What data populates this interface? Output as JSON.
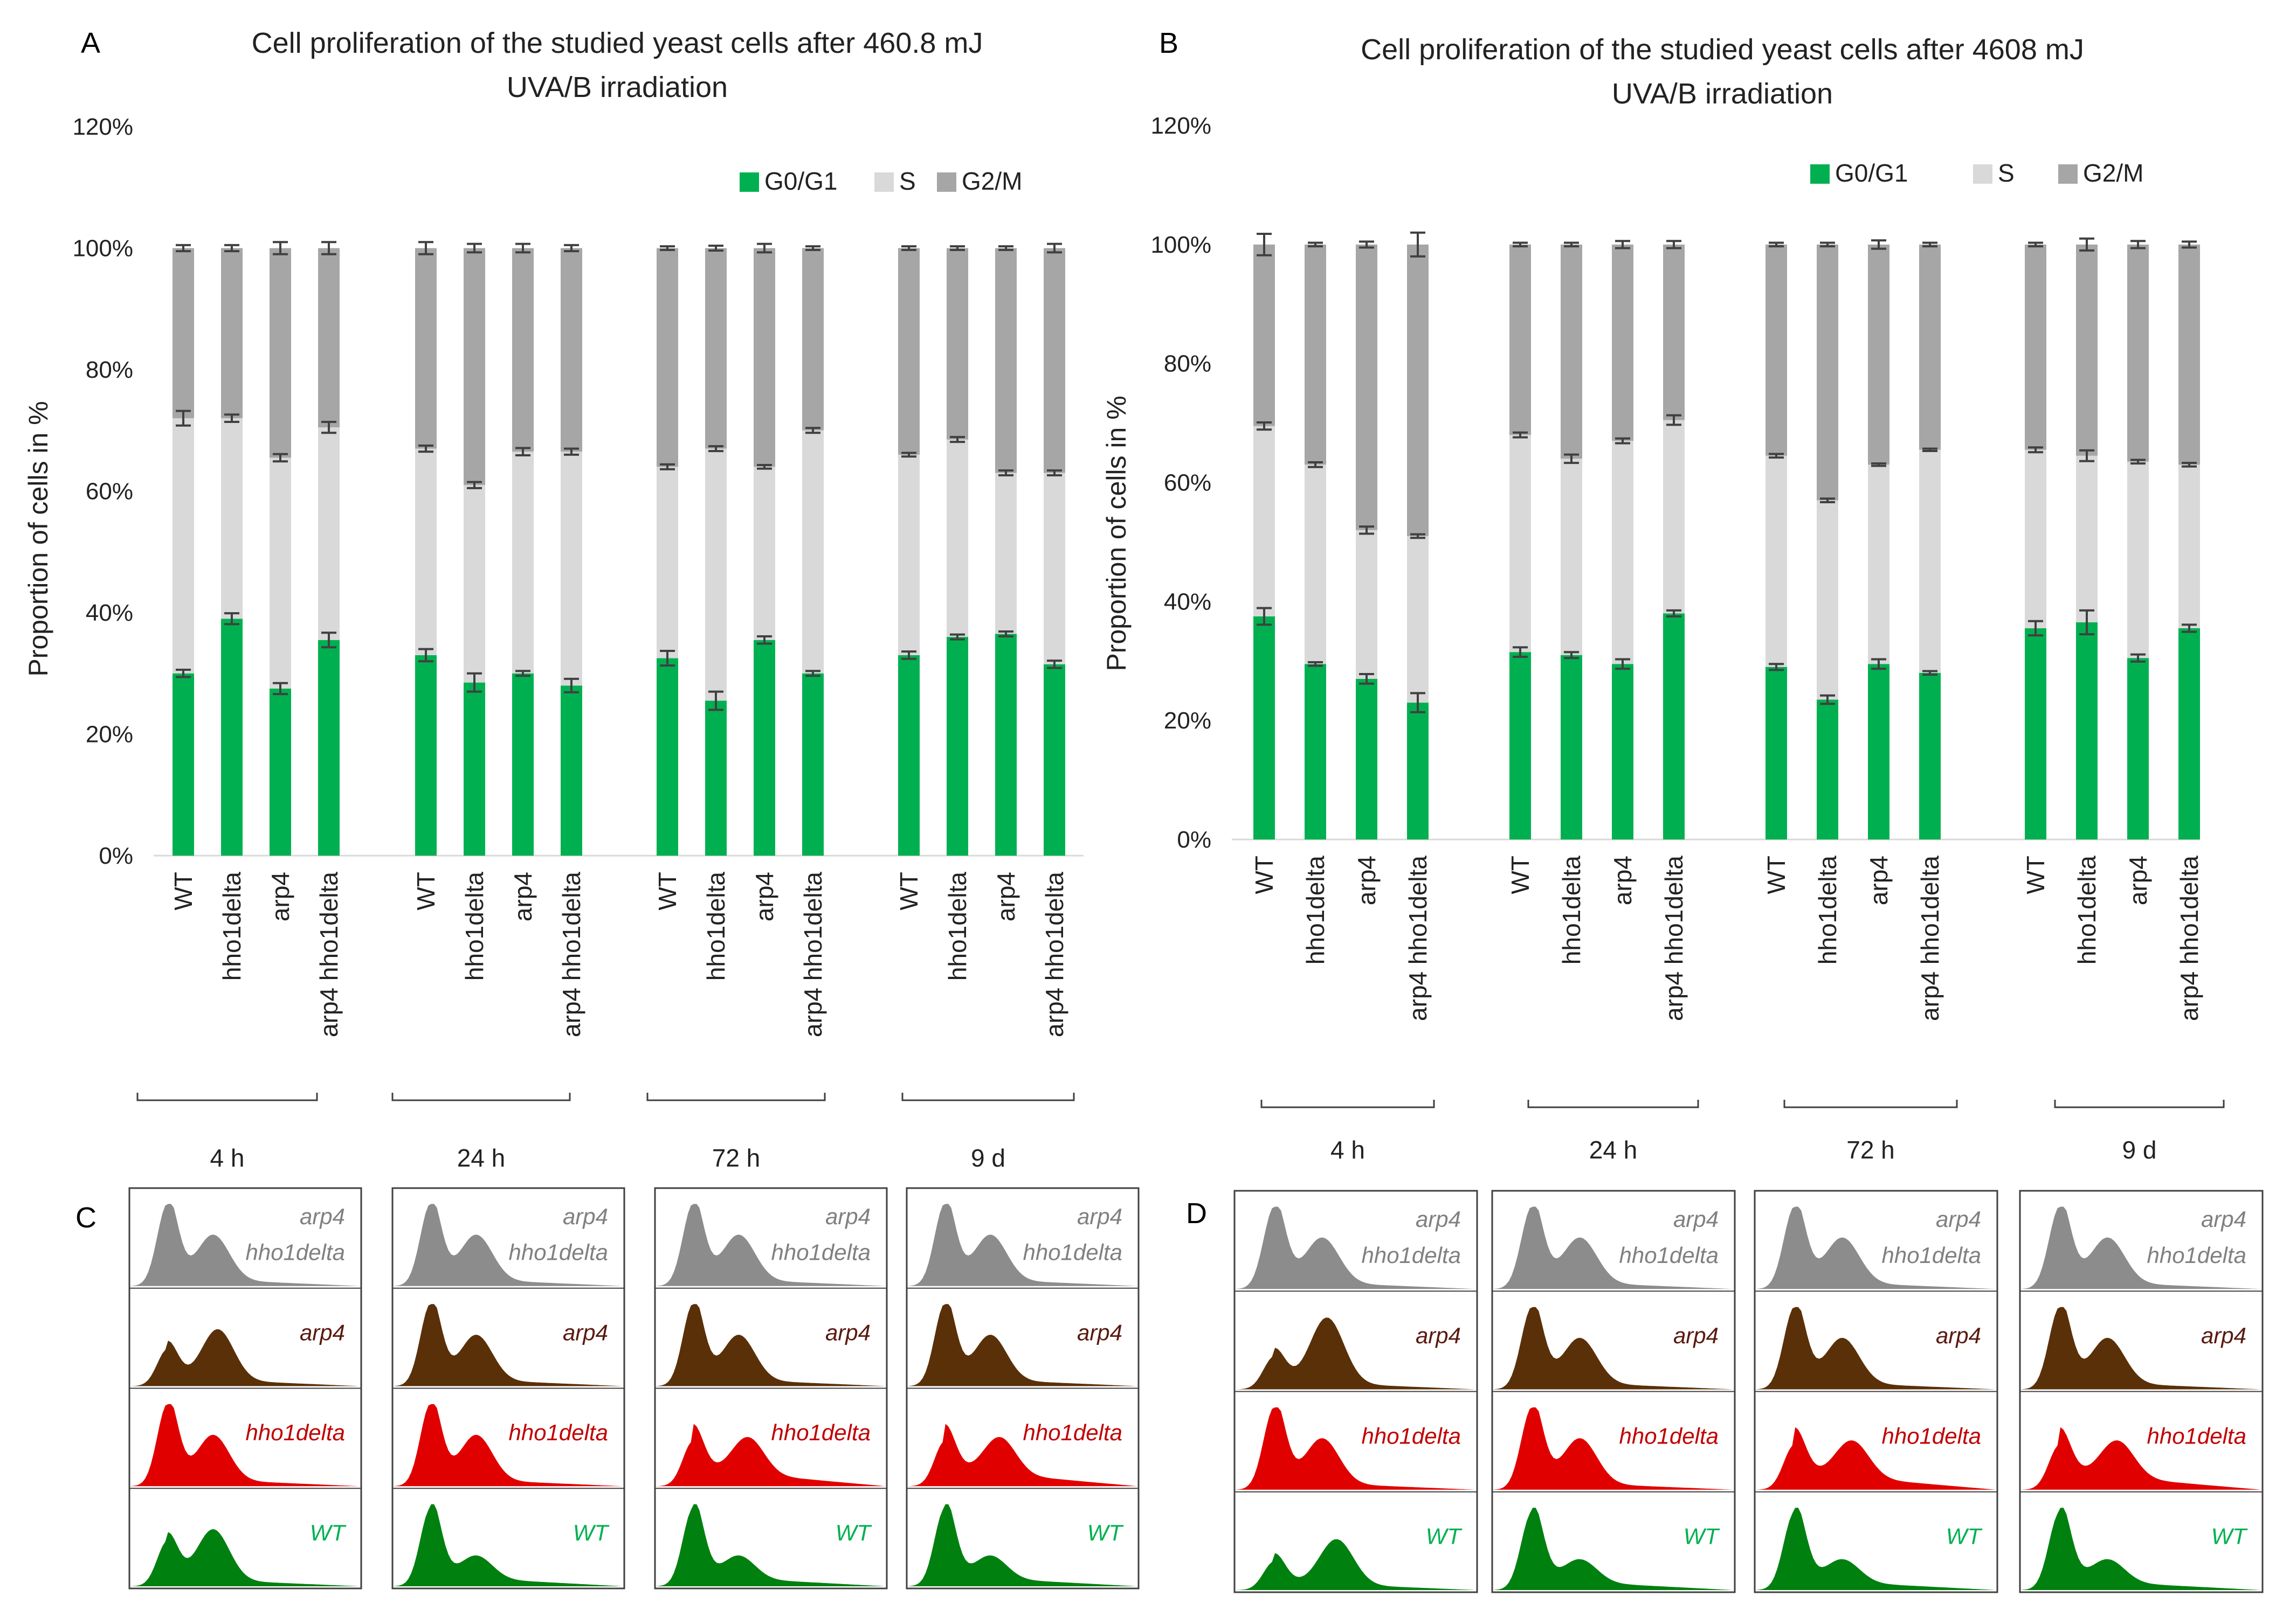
{
  "colors": {
    "g0g1": "#00b050",
    "s": "#d9d9d9",
    "g2m": "#a6a6a6",
    "error": "#404040",
    "hist_wt": "#00800f",
    "hist_hho1": "#e00000",
    "hist_arp4": "#5a3008",
    "hist_double": "#8c8c8c",
    "wt_label": "#00b050",
    "hho1_label": "#c00000",
    "arp4_label": "#5a1a10",
    "double_label": "#808080"
  },
  "chart_data": [
    {
      "panel": "A",
      "type": "bar",
      "stacked": true,
      "title_line1": "Cell proliferation of the studied yeast cells after 460.8 mJ",
      "title_line2": "UVA/B irradiation",
      "ylabel": "Proportion of cells in %",
      "ylim": [
        0,
        1.2
      ],
      "yticks": [
        "0%",
        "20%",
        "40%",
        "60%",
        "80%",
        "100%",
        "120%"
      ],
      "legend": [
        "G0/G1",
        "S",
        "G2/M"
      ],
      "groups": [
        {
          "label": "4 h",
          "categories": [
            "WT",
            "hho1delta",
            "arp4",
            "arp4 hho1delta"
          ],
          "g0g1": [
            30,
            39,
            27.5,
            35.5
          ],
          "s": [
            42,
            33,
            38,
            35
          ],
          "g2m": [
            28,
            28,
            34.5,
            29.5
          ],
          "err_g0g1": [
            0.6,
            0.9,
            0.9,
            1.2
          ],
          "err_s": [
            1.2,
            0.6,
            0.6,
            0.9
          ],
          "err_total": [
            0.5,
            0.5,
            1.0,
            1.0
          ]
        },
        {
          "label": "24 h",
          "categories": [
            "WT",
            "hho1delta",
            "arp4",
            "arp4 hho1delta"
          ],
          "g0g1": [
            33,
            28.5,
            30,
            28
          ],
          "s": [
            34,
            32.5,
            36.5,
            38.5
          ],
          "g2m": [
            33,
            39,
            33.5,
            33.5
          ],
          "err_g0g1": [
            1.0,
            1.5,
            0.4,
            1.1
          ],
          "err_s": [
            0.5,
            0.5,
            0.6,
            0.5
          ],
          "err_total": [
            1.0,
            0.7,
            0.7,
            0.5
          ]
        },
        {
          "label": "72 h",
          "categories": [
            "WT",
            "hho1delta",
            "arp4",
            "arp4 hho1delta"
          ],
          "g0g1": [
            32.5,
            25.5,
            35.5,
            30
          ],
          "s": [
            31.5,
            41.5,
            28.5,
            40
          ],
          "g2m": [
            36,
            33,
            36,
            30
          ],
          "err_g0g1": [
            1.2,
            1.5,
            0.6,
            0.4
          ],
          "err_s": [
            0.4,
            0.4,
            0.3,
            0.4
          ],
          "err_total": [
            0.3,
            0.4,
            0.7,
            0.3
          ]
        },
        {
          "label": "9 d",
          "categories": [
            "WT",
            "hho1delta",
            "arp4",
            "arp4 hho1delta"
          ],
          "g0g1": [
            33,
            36,
            36.5,
            31.5
          ],
          "s": [
            33,
            32.5,
            26.5,
            31.5
          ],
          "g2m": [
            34,
            31.5,
            37,
            37
          ],
          "err_g0g1": [
            0.6,
            0.4,
            0.4,
            0.6
          ],
          "err_s": [
            0.3,
            0.4,
            0.4,
            0.4
          ],
          "err_total": [
            0.3,
            0.3,
            0.3,
            0.7
          ]
        }
      ]
    },
    {
      "panel": "B",
      "type": "bar",
      "stacked": true,
      "title_line1": "Cell proliferation of the studied yeast cells after 4608 mJ",
      "title_line2": "UVA/B irradiation",
      "ylabel": "Proportion of cells in %",
      "ylim": [
        0,
        1.2
      ],
      "yticks": [
        "0%",
        "20%",
        "40%",
        "60%",
        "80%",
        "100%",
        "120%"
      ],
      "legend": [
        "G0/G1",
        "S",
        "G2/M"
      ],
      "groups": [
        {
          "label": "4 h",
          "categories": [
            "WT",
            "hho1delta",
            "arp4",
            "arp4 hho1delta"
          ],
          "g0g1": [
            37.5,
            29.5,
            27,
            23
          ],
          "s": [
            32,
            33.5,
            25,
            28
          ],
          "g2m": [
            30.5,
            37,
            48,
            49
          ],
          "err_g0g1": [
            1.4,
            0.3,
            0.8,
            1.6
          ],
          "err_s": [
            0.6,
            0.4,
            0.6,
            0.3
          ],
          "err_total": [
            1.8,
            0.3,
            0.5,
            2.0
          ]
        },
        {
          "label": "24 h",
          "categories": [
            "WT",
            "hho1delta",
            "arp4",
            "arp4 hho1delta"
          ],
          "g0g1": [
            31.5,
            31,
            29.5,
            38
          ],
          "s": [
            36.5,
            33,
            37.5,
            32.5
          ],
          "g2m": [
            32,
            36,
            33,
            29.5
          ],
          "err_g0g1": [
            0.8,
            0.5,
            0.8,
            0.5
          ],
          "err_s": [
            0.4,
            0.7,
            0.4,
            0.8
          ],
          "err_total": [
            0.3,
            0.3,
            0.6,
            0.6
          ]
        },
        {
          "label": "72 h",
          "categories": [
            "WT",
            "hho1delta",
            "arp4",
            "arp4 hho1delta"
          ],
          "g0g1": [
            29,
            23.5,
            29.5,
            28
          ],
          "s": [
            35.5,
            33.5,
            33.5,
            37.5
          ],
          "g2m": [
            35.5,
            43,
            37,
            34.5
          ],
          "err_g0g1": [
            0.5,
            0.7,
            0.8,
            0.3
          ],
          "err_s": [
            0.3,
            0.3,
            0.2,
            0.2
          ],
          "err_total": [
            0.3,
            0.3,
            0.7,
            0.3
          ]
        },
        {
          "label": "9 d",
          "categories": [
            "WT",
            "hho1delta",
            "arp4",
            "arp4 hho1delta"
          ],
          "g0g1": [
            35.5,
            36.5,
            30.5,
            35.5
          ],
          "s": [
            30,
            28,
            33,
            27.5
          ],
          "g2m": [
            34.5,
            35.5,
            36.5,
            37
          ],
          "err_g0g1": [
            1.2,
            2.0,
            0.6,
            0.6
          ],
          "err_s": [
            0.4,
            0.9,
            0.3,
            0.3
          ],
          "err_total": [
            0.3,
            1.0,
            0.6,
            0.5
          ]
        }
      ]
    }
  ],
  "histograms": [
    {
      "panel": "C",
      "timepoints": [
        "4 h",
        "24 h",
        "72 h",
        "9 d"
      ],
      "rows": [
        {
          "strain": "arp4 hho1delta",
          "label_line1": "arp4",
          "label_line2": "hho1delta"
        },
        {
          "strain": "arp4",
          "label_line1": "arp4",
          "label_line2": ""
        },
        {
          "strain": "hho1delta",
          "label_line1": "hho1delta",
          "label_line2": ""
        },
        {
          "strain": "WT",
          "label_line1": "WT",
          "label_line2": ""
        }
      ]
    },
    {
      "panel": "D",
      "timepoints": [
        "4 h",
        "24 h",
        "72 h",
        "9 d"
      ],
      "rows": [
        {
          "strain": "arp4 hho1delta",
          "label_line1": "arp4",
          "label_line2": "hho1delta"
        },
        {
          "strain": "arp4",
          "label_line1": "arp4",
          "label_line2": ""
        },
        {
          "strain": "hho1delta",
          "label_line1": "hho1delta",
          "label_line2": ""
        },
        {
          "strain": "WT",
          "label_line1": "WT",
          "label_line2": ""
        }
      ]
    }
  ]
}
